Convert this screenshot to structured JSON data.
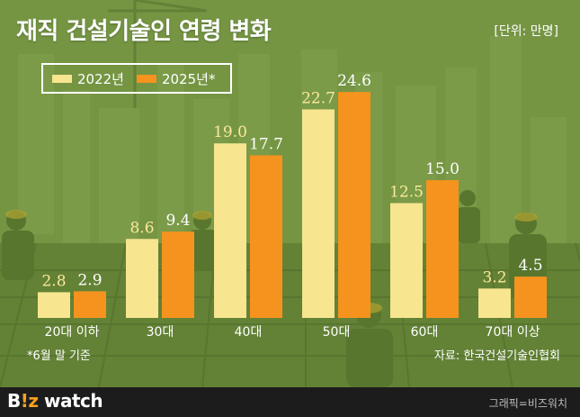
{
  "header": {
    "title": "재직 건설기술인 연령 변화",
    "unit": "[단위: 만명]"
  },
  "legend": [
    {
      "label": "2022년",
      "color": "#f7e58f"
    },
    {
      "label": "2025년*",
      "color": "#f5931e"
    }
  ],
  "notes": {
    "footnote": "*6월 말 기준",
    "source": "자료: 한국건설기술인협회"
  },
  "footer": {
    "brand_prefix": "B",
    "brand_accent": "!z",
    "brand_suffix": " watch",
    "credit": "그래픽=비즈워치"
  },
  "chart_data": {
    "type": "bar",
    "title": "재직 건설기술인 연령 변화",
    "unit": "만명",
    "categories": [
      "20대 이하",
      "30대",
      "40대",
      "50대",
      "60대",
      "70대 이상"
    ],
    "series": [
      {
        "name": "2022년",
        "color": "#f7e58f",
        "values": [
          2.8,
          8.6,
          19.0,
          22.7,
          12.5,
          3.2
        ]
      },
      {
        "name": "2025년*",
        "color": "#f5931e",
        "values": [
          2.9,
          9.4,
          17.7,
          24.6,
          15.0,
          4.5
        ]
      }
    ],
    "ylim": [
      0,
      25
    ],
    "grid": false,
    "legend_position": "top-left"
  }
}
